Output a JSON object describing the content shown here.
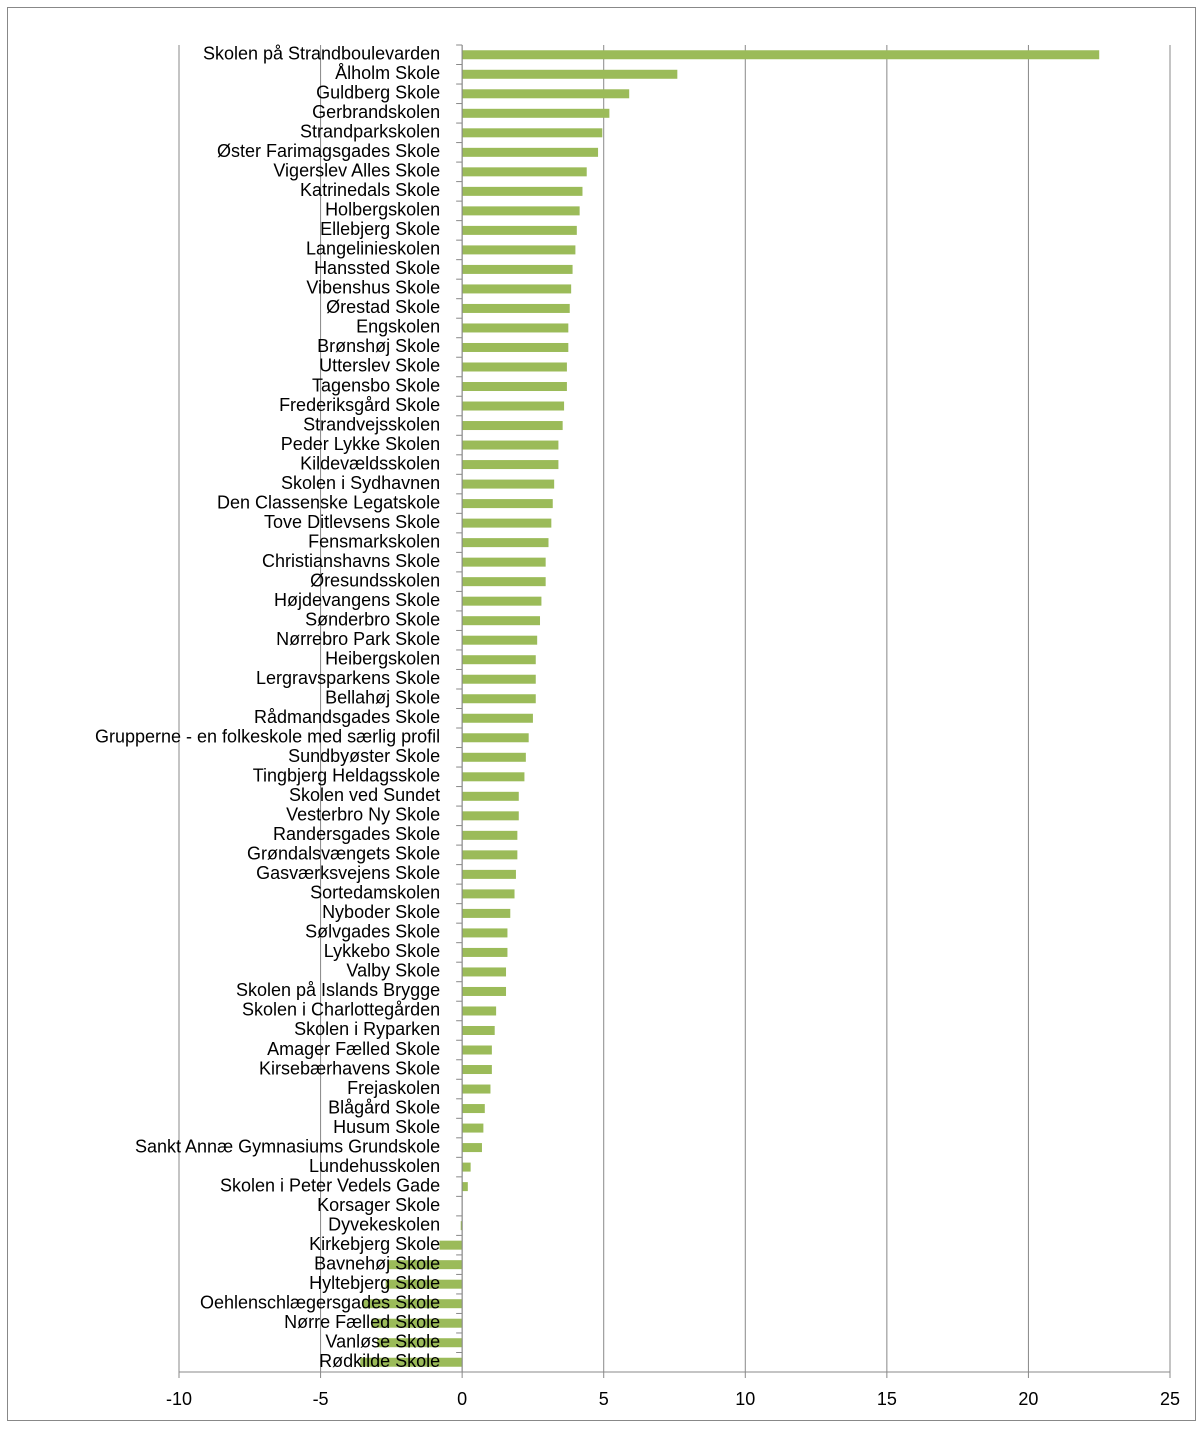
{
  "chart_data": {
    "type": "hbar",
    "categories": [
      "Skolen på Strandboulevarden",
      "Ålholm Skole",
      "Guldberg Skole",
      "Gerbrandskolen",
      "Strandparkskolen",
      "Øster Farimagsgades Skole",
      "Vigerslev Alles Skole",
      "Katrinedals Skole",
      "Holbergskolen",
      "Ellebjerg Skole",
      "Langelinieskolen",
      "Hanssted Skole",
      "Vibenshus Skole",
      "Ørestad Skole",
      "Engskolen",
      "Brønshøj Skole",
      "Utterslev Skole",
      "Tagensbo Skole",
      "Frederiksgård Skole",
      "Strandvejsskolen",
      "Peder Lykke Skolen",
      "Kildevældsskolen",
      "Skolen i Sydhavnen",
      "Den Classenske Legatskole",
      "Tove Ditlevsens Skole",
      "Fensmarkskolen",
      "Christianshavns Skole",
      "Øresundsskolen",
      "Højdevangens Skole",
      "Sønderbro Skole",
      "Nørrebro Park Skole",
      "Heibergskolen",
      "Lergravsparkens Skole",
      "Bellahøj Skole",
      "Rådmandsgades Skole",
      "Grupperne - en folkeskole med særlig profil",
      "Sundbyøster Skole",
      "Tingbjerg Heldagsskole",
      "Skolen ved Sundet",
      "Vesterbro Ny Skole",
      "Randersgades Skole",
      "Grøndalsvængets Skole",
      "Gasværksvejens Skole",
      "Sortedamskolen",
      "Nyboder Skole",
      "Sølvgades Skole",
      "Lykkebo Skole",
      "Valby Skole",
      "Skolen på Islands Brygge",
      "Skolen i Charlottegården",
      "Skolen i Ryparken",
      "Amager Fælled Skole",
      "Kirsebærhavens Skole",
      "Frejaskolen",
      "Blågård Skole",
      "Husum Skole",
      "Sankt Annæ Gymnasiums Grundskole",
      "Lundehusskolen",
      "Skolen i Peter Vedels Gade",
      "Korsager Skole",
      "Dyvekeskolen",
      "Kirkebjerg Skole",
      "Bavnehøj Skole",
      "Hyltebjerg Skole",
      "Oehlenschlægersgades Skole",
      "Nørre Fælled Skole",
      "Vanløse Skole",
      "Rødkilde Skole"
    ],
    "values": [
      22.5,
      7.6,
      5.9,
      5.2,
      4.95,
      4.8,
      4.4,
      4.25,
      4.15,
      4.05,
      4.0,
      3.9,
      3.85,
      3.8,
      3.75,
      3.75,
      3.7,
      3.7,
      3.6,
      3.55,
      3.4,
      3.4,
      3.25,
      3.2,
      3.15,
      3.05,
      2.95,
      2.95,
      2.8,
      2.75,
      2.65,
      2.6,
      2.6,
      2.6,
      2.5,
      2.35,
      2.25,
      2.2,
      2.0,
      2.0,
      1.95,
      1.95,
      1.9,
      1.85,
      1.7,
      1.6,
      1.6,
      1.55,
      1.55,
      1.2,
      1.15,
      1.05,
      1.05,
      1.0,
      0.8,
      0.75,
      0.7,
      0.3,
      0.2,
      0,
      -0.05,
      -0.8,
      -2.6,
      -2.7,
      -3.5,
      -3.2,
      -3.0,
      -3.6
    ],
    "color": "#9bbb59",
    "xlim": [
      -10,
      25
    ],
    "xticks": [
      -10,
      -5,
      0,
      5,
      10,
      15,
      20,
      25
    ],
    "grid": true
  }
}
